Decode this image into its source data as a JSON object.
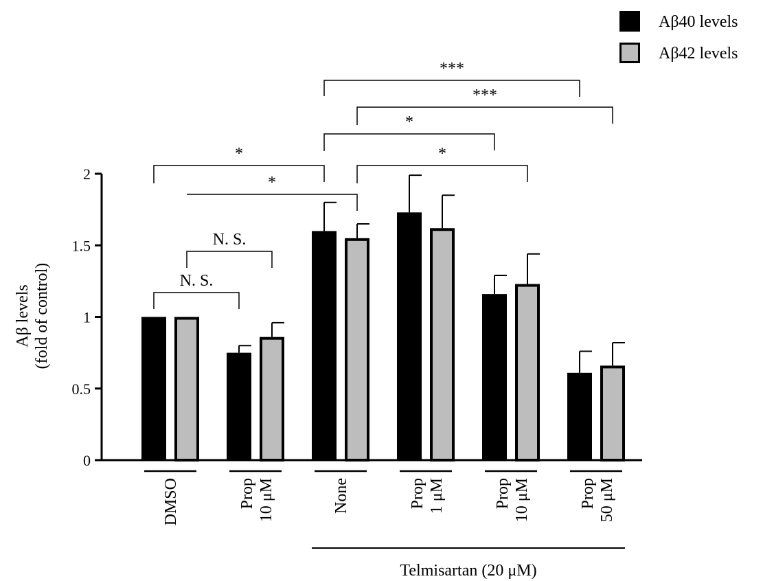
{
  "chart_data": {
    "type": "bar",
    "ylabel_lines": [
      "Aβ levels",
      "(fold of control)"
    ],
    "ylim": [
      0,
      2
    ],
    "yticks": [
      0,
      0.5,
      1,
      1.5,
      2
    ],
    "ytick_labels": [
      "0",
      "0.5",
      "1",
      "1.5",
      "2"
    ],
    "categories": [
      {
        "lines": [
          "DMSO"
        ]
      },
      {
        "lines": [
          "Prop",
          "10 μM"
        ]
      },
      {
        "lines": [
          "None"
        ]
      },
      {
        "lines": [
          "Prop",
          "1 μM"
        ]
      },
      {
        "lines": [
          "Prop",
          "10 μM"
        ]
      },
      {
        "lines": [
          "Prop",
          "50 μM"
        ]
      }
    ],
    "series": [
      {
        "name": "Aβ40 levels",
        "color": "#000000",
        "values": [
          1.0,
          0.75,
          1.6,
          1.73,
          1.16,
          0.61
        ],
        "errors": [
          0.0,
          0.05,
          0.2,
          0.26,
          0.13,
          0.15
        ]
      },
      {
        "name": "Aβ42 levels",
        "color": "#bdbdbd",
        "values": [
          1.0,
          0.86,
          1.55,
          1.62,
          1.23,
          0.66
        ],
        "errors": [
          0.0,
          0.1,
          0.1,
          0.23,
          0.21,
          0.16
        ]
      }
    ],
    "group_label": "Telmisartan (20 μM)",
    "group_categories": [
      2,
      3,
      4,
      5
    ],
    "grid": false,
    "legend_position": "top-right",
    "significance": [
      {
        "label": "N. S.",
        "from_group": 0,
        "from_series": 0,
        "to_group": 1,
        "to_series": 0
      },
      {
        "label": "N. S.",
        "from_group": 0,
        "from_series": 1,
        "to_group": 1,
        "to_series": 1
      },
      {
        "label": "*",
        "from_group": 0,
        "from_series": 0,
        "to_group": 2,
        "to_series": 0
      },
      {
        "label": "*",
        "from_group": 0,
        "from_series": 1,
        "to_group": 2,
        "to_series": 1
      },
      {
        "label": "*",
        "from_group": 2,
        "from_series": 0,
        "to_group": 4,
        "to_series": 0
      },
      {
        "label": "*",
        "from_group": 2,
        "from_series": 1,
        "to_group": 4,
        "to_series": 1
      },
      {
        "label": "***",
        "from_group": 2,
        "from_series": 0,
        "to_group": 5,
        "to_series": 0
      },
      {
        "label": "***",
        "from_group": 2,
        "from_series": 1,
        "to_group": 5,
        "to_series": 1
      }
    ]
  }
}
